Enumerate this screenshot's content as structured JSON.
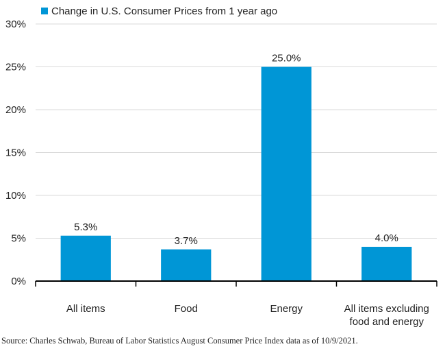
{
  "chart_data": {
    "type": "bar",
    "legend": {
      "entries": [
        "Change in U.S. Consumer Prices from 1 year ago"
      ],
      "placement": "top-left"
    },
    "categories": [
      [
        "All items"
      ],
      [
        "Food"
      ],
      [
        "Energy"
      ],
      [
        "All items excluding",
        "food and energy"
      ]
    ],
    "series": [
      {
        "name": "Change in U.S. Consumer Prices from 1 year ago",
        "values": [
          5.3,
          3.7,
          25.0,
          4.0
        ],
        "data_labels": [
          "5.3%",
          "3.7%",
          "25.0%",
          "4.0%"
        ],
        "color": "#0096d6"
      }
    ],
    "ylim": [
      0,
      30
    ],
    "yticks": [
      0,
      5,
      10,
      15,
      20,
      25,
      30
    ],
    "ytick_labels": [
      "0%",
      "5%",
      "10%",
      "15%",
      "20%",
      "25%",
      "30%"
    ],
    "grid": true
  },
  "source": "Source: Charles Schwab, Bureau of Labor Statistics August Consumer Price Index data as of 10/9/2021."
}
